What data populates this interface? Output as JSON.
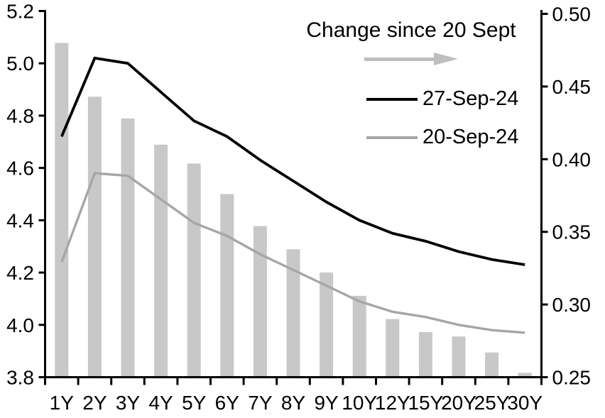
{
  "chart_data": {
    "type": "combo-bar-line",
    "title": "",
    "categories": [
      "1Y",
      "2Y",
      "3Y",
      "4Y",
      "5Y",
      "6Y",
      "7Y",
      "8Y",
      "9Y",
      "10Y",
      "12Y",
      "15Y",
      "20Y",
      "25Y",
      "30Y"
    ],
    "series": [
      {
        "name": "Change since 20 Sept",
        "type": "bar",
        "axis": "right",
        "color": "#C8C8C8",
        "values": [
          0.48,
          0.443,
          0.428,
          0.41,
          0.397,
          0.376,
          0.354,
          0.338,
          0.322,
          0.306,
          0.29,
          0.281,
          0.278,
          0.267,
          0.253
        ]
      },
      {
        "name": "27-Sep-24",
        "type": "line",
        "axis": "left",
        "color": "#000000",
        "values": [
          4.72,
          5.02,
          5.0,
          4.89,
          4.78,
          4.72,
          4.63,
          4.55,
          4.47,
          4.4,
          4.35,
          4.32,
          4.28,
          4.25,
          4.23
        ]
      },
      {
        "name": "20-Sep-24",
        "type": "line",
        "axis": "left",
        "color": "#A6A6A6",
        "values": [
          4.24,
          4.58,
          4.57,
          4.48,
          4.39,
          4.34,
          4.27,
          4.21,
          4.15,
          4.09,
          4.05,
          4.03,
          4.0,
          3.98,
          3.97
        ]
      }
    ],
    "left_axis": {
      "min": 3.8,
      "max": 5.2,
      "tick_labels": [
        "5.2",
        "5.0",
        "4.8",
        "4.6",
        "4.4",
        "4.2",
        "4.0",
        "3.8"
      ]
    },
    "right_axis": {
      "min": 0.25,
      "max": 0.5,
      "tick_labels": [
        "0.50",
        "0.45",
        "0.40",
        "0.35",
        "0.30",
        "0.25"
      ]
    },
    "legend": {
      "arrow_color": "#BEBEBE",
      "position": "top-inside"
    },
    "grid": false,
    "background": "#FFFFFF"
  }
}
